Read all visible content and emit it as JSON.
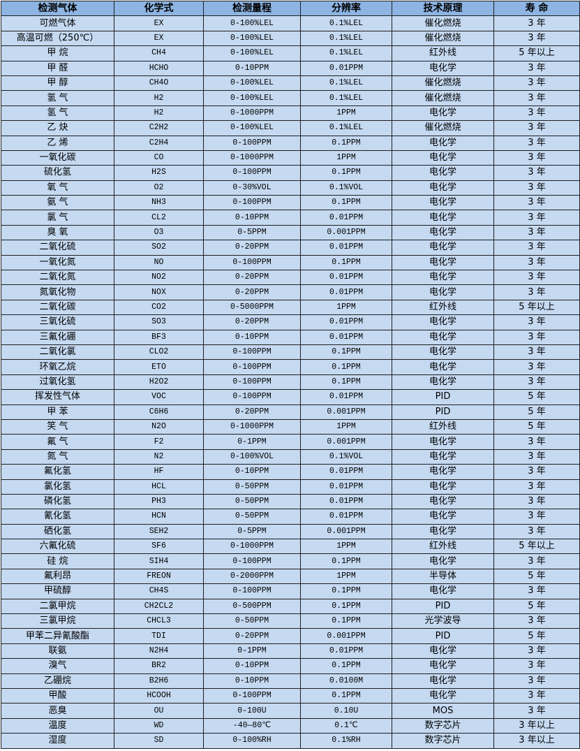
{
  "headers": [
    "检测气体",
    "化学式",
    "检测量程",
    "分辨率",
    "技术原理",
    "寿 命"
  ],
  "colors": {
    "header_bg": "#8db4e2",
    "row_bg": "#c5d9f1",
    "border": "#1f1f1f"
  },
  "rows": [
    [
      "可燃气体",
      "EX",
      "0-100%LEL",
      "0.1%LEL",
      "催化燃烧",
      "3 年"
    ],
    [
      "高温可燃（250℃）",
      "EX",
      "0-100%LEL",
      "0.1%LEL",
      "催化燃烧",
      "3 年"
    ],
    [
      "甲 烷",
      "CH4",
      "0-100%LEL",
      "0.1%LEL",
      "红外线",
      "5 年以上"
    ],
    [
      "甲 醛",
      "HCHO",
      "0-10PPM",
      "0.01PPM",
      "电化学",
      "3 年"
    ],
    [
      "甲 醇",
      "CH4O",
      "0-100%LEL",
      "0.1%LEL",
      "催化燃烧",
      "3 年"
    ],
    [
      "氢 气",
      "H2",
      "0-100%LEL",
      "0.1%LEL",
      "催化燃烧",
      "3 年"
    ],
    [
      "氢 气",
      "H2",
      "0-1000PPM",
      "1PPM",
      "电化学",
      "3 年"
    ],
    [
      "乙 炔",
      "C2H2",
      "0-100%LEL",
      "0.1%LEL",
      "催化燃烧",
      "3 年"
    ],
    [
      "乙 烯",
      "C2H4",
      "0-100PPM",
      "0.1PPM",
      "电化学",
      "3 年"
    ],
    [
      "一氧化碳",
      "CO",
      "0-1000PPM",
      "1PPM",
      "电化学",
      "3 年"
    ],
    [
      "硫化氢",
      "H2S",
      "0-100PPM",
      "0.1PPM",
      "电化学",
      "3 年"
    ],
    [
      "氧 气",
      "O2",
      "0-30%VOL",
      "0.1%VOL",
      "电化学",
      "3 年"
    ],
    [
      "氨 气",
      "NH3",
      "0-100PPM",
      "0.1PPM",
      "电化学",
      "3 年"
    ],
    [
      "氯 气",
      "CL2",
      "0-10PPM",
      "0.01PPM",
      "电化学",
      "3 年"
    ],
    [
      "臭 氧",
      "O3",
      "0-5PPM",
      "0.001PPM",
      "电化学",
      "3 年"
    ],
    [
      "二氧化硫",
      "SO2",
      "0-20PPM",
      "0.01PPM",
      "电化学",
      "3 年"
    ],
    [
      "一氧化氮",
      "NO",
      "0-100PPM",
      "0.1PPM",
      "电化学",
      "3 年"
    ],
    [
      "二氧化氮",
      "NO2",
      "0-20PPM",
      "0.01PPM",
      "电化学",
      "3 年"
    ],
    [
      "氮氧化物",
      "NOX",
      "0-20PPM",
      "0.01PPM",
      "电化学",
      "3 年"
    ],
    [
      "二氧化碳",
      "CO2",
      "0-5000PPM",
      "1PPM",
      "红外线",
      "5 年以上"
    ],
    [
      "三氧化硫",
      "SO3",
      "0-20PPM",
      "0.01PPM",
      "电化学",
      "3 年"
    ],
    [
      "三氟化硼",
      "BF3",
      "0-10PPM",
      "0.01PPM",
      "电化学",
      "3 年"
    ],
    [
      "二氧化氯",
      "CLO2",
      "0-100PPM",
      "0.1PPM",
      "电化学",
      "3 年"
    ],
    [
      "环氧乙烷",
      "ETO",
      "0-100PPM",
      "0.1PPM",
      "电化学",
      "3 年"
    ],
    [
      "过氧化氢",
      "H2O2",
      "0-100PPM",
      "0.1PPM",
      "电化学",
      "3 年"
    ],
    [
      "挥发性气体",
      "VOC",
      "0-100PPM",
      "0.01PPM",
      "PID",
      "5 年"
    ],
    [
      "甲 苯",
      "C6H6",
      "0-20PPM",
      "0.001PPM",
      "PID",
      "5 年"
    ],
    [
      "笑 气",
      "N2O",
      "0-1000PPM",
      "1PPM",
      "红外线",
      "5 年"
    ],
    [
      "氟 气",
      "F2",
      "0-1PPM",
      "0.001PPM",
      "电化学",
      "3 年"
    ],
    [
      "氮 气",
      "N2",
      "0-100%VOL",
      "0.1%VOL",
      "电化学",
      "3 年"
    ],
    [
      "氟化氢",
      "HF",
      "0-10PPM",
      "0.01PPM",
      "电化学",
      "3 年"
    ],
    [
      "氯化氢",
      "HCL",
      "0-50PPM",
      "0.01PPM",
      "电化学",
      "3 年"
    ],
    [
      "磷化氢",
      "PH3",
      "0-50PPM",
      "0.01PPM",
      "电化学",
      "3 年"
    ],
    [
      "氰化氢",
      "HCN",
      "0-50PPM",
      "0.01PPM",
      "电化学",
      "3 年"
    ],
    [
      "硒化氢",
      "SEH2",
      "0-5PPM",
      "0.001PPM",
      "电化学",
      "3 年"
    ],
    [
      "六氟化硫",
      "SF6",
      "0-1000PPM",
      "1PPM",
      "红外线",
      "5 年以上"
    ],
    [
      "硅 烷",
      "SIH4",
      "0-100PPM",
      "0.1PPM",
      "电化学",
      "3 年"
    ],
    [
      "氟利昂",
      "FREON",
      "0-2000PPM",
      "1PPM",
      "半导体",
      "5 年"
    ],
    [
      "甲硫醇",
      "CH4S",
      "0-100PPM",
      "0.1PPM",
      "电化学",
      "3 年"
    ],
    [
      "二氯甲烷",
      "CH2CL2",
      "0-500PPM",
      "0.1PPM",
      "PID",
      "5 年"
    ],
    [
      "三氯甲烷",
      "CHCL3",
      "0-50PPM",
      "0.1PPM",
      "光学波导",
      "3 年"
    ],
    [
      "甲苯二异氰酸酯",
      "TDI",
      "0-20PPM",
      "0.001PPM",
      "PID",
      "5 年"
    ],
    [
      "联氨",
      "N2H4",
      "0-1PPM",
      "0.01PPM",
      "电化学",
      "3 年"
    ],
    [
      "溴气",
      "BR2",
      "0-10PPM",
      "0.1PPM",
      "电化学",
      "3 年"
    ],
    [
      "乙硼烷",
      "B2H6",
      "0-10PPM",
      "0.0100M",
      "电化学",
      "3 年"
    ],
    [
      "甲酸",
      "HCOOH",
      "0-100PPM",
      "0.1PPM",
      "电化学",
      "3 年"
    ],
    [
      "恶臭",
      "OU",
      "0-100U",
      "0.10U",
      "MOS",
      "3 年"
    ],
    [
      "温度",
      "WD",
      "-40—80℃",
      "0.1℃",
      "数字芯片",
      "3 年以上"
    ],
    [
      "湿度",
      "SD",
      "0-100%RH",
      "0.1%RH",
      "数字芯片",
      "3 年以上"
    ]
  ]
}
